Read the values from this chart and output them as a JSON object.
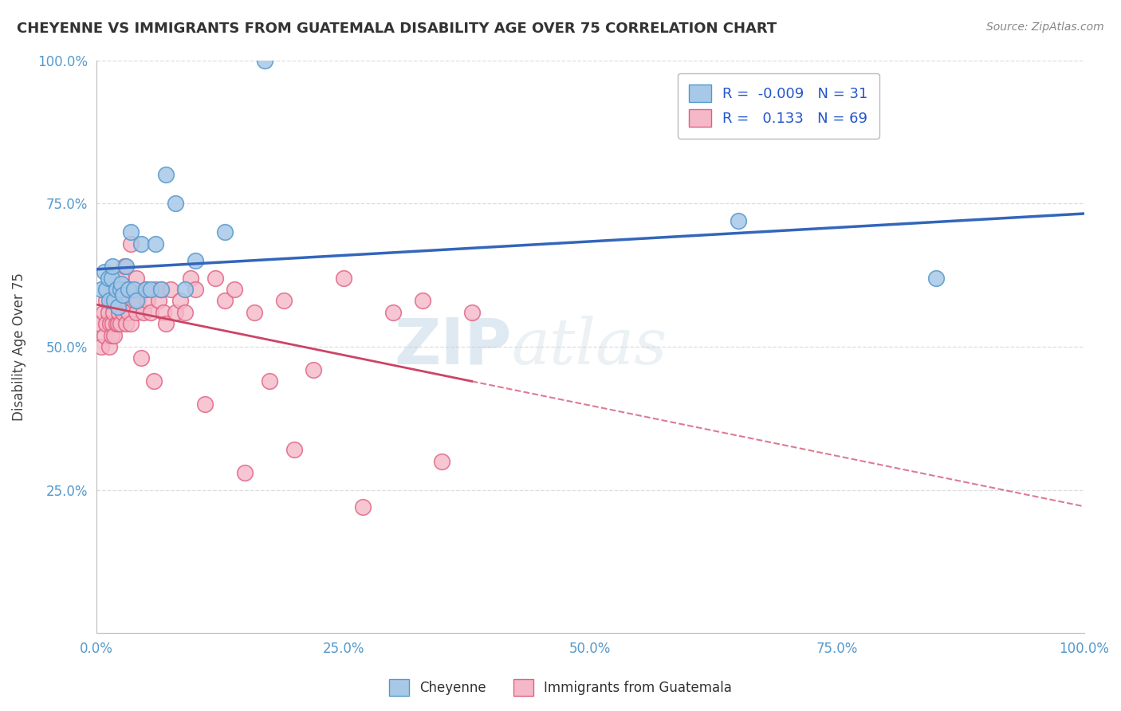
{
  "title": "CHEYENNE VS IMMIGRANTS FROM GUATEMALA DISABILITY AGE OVER 75 CORRELATION CHART",
  "source": "Source: ZipAtlas.com",
  "ylabel": "Disability Age Over 75",
  "xlabel": "",
  "xlim": [
    0,
    1.0
  ],
  "ylim": [
    0,
    1.0
  ],
  "xticks": [
    0.0,
    0.25,
    0.5,
    0.75,
    1.0
  ],
  "yticks": [
    0.25,
    0.5,
    0.75,
    1.0
  ],
  "xticklabels": [
    "0.0%",
    "25.0%",
    "50.0%",
    "75.0%",
    "100.0%"
  ],
  "yticklabels": [
    "25.0%",
    "50.0%",
    "75.0%",
    "100.0%"
  ],
  "blue_R": -0.009,
  "blue_N": 31,
  "pink_R": 0.133,
  "pink_N": 69,
  "blue_color": "#a8c8e8",
  "pink_color": "#f4b8c8",
  "blue_edge": "#5599cc",
  "pink_edge": "#e06080",
  "trend_blue": "#3366bb",
  "trend_pink": "#cc4466",
  "watermark_zip": "ZIP",
  "watermark_atlas": "atlas",
  "background_color": "#ffffff",
  "grid_color": "#dddddd",
  "title_color": "#333333",
  "axis_label_color": "#5599cc",
  "blue_scatter_x": [
    0.005,
    0.008,
    0.01,
    0.012,
    0.013,
    0.015,
    0.016,
    0.018,
    0.02,
    0.022,
    0.024,
    0.025,
    0.027,
    0.03,
    0.032,
    0.035,
    0.038,
    0.04,
    0.045,
    0.05,
    0.055,
    0.06,
    0.065,
    0.07,
    0.08,
    0.09,
    0.1,
    0.13,
    0.17,
    0.65,
    0.85
  ],
  "blue_scatter_y": [
    0.6,
    0.63,
    0.6,
    0.62,
    0.58,
    0.62,
    0.64,
    0.58,
    0.6,
    0.57,
    0.6,
    0.61,
    0.59,
    0.64,
    0.6,
    0.7,
    0.6,
    0.58,
    0.68,
    0.6,
    0.6,
    0.68,
    0.6,
    0.8,
    0.75,
    0.6,
    0.65,
    0.7,
    1.0,
    0.72,
    0.62
  ],
  "pink_scatter_x": [
    0.003,
    0.005,
    0.007,
    0.008,
    0.01,
    0.01,
    0.012,
    0.013,
    0.014,
    0.015,
    0.015,
    0.016,
    0.017,
    0.018,
    0.018,
    0.02,
    0.02,
    0.022,
    0.022,
    0.023,
    0.024,
    0.025,
    0.025,
    0.027,
    0.028,
    0.028,
    0.03,
    0.03,
    0.032,
    0.033,
    0.035,
    0.035,
    0.038,
    0.04,
    0.04,
    0.042,
    0.045,
    0.048,
    0.05,
    0.052,
    0.055,
    0.058,
    0.06,
    0.063,
    0.065,
    0.068,
    0.07,
    0.075,
    0.08,
    0.085,
    0.09,
    0.095,
    0.1,
    0.11,
    0.12,
    0.13,
    0.14,
    0.15,
    0.16,
    0.175,
    0.19,
    0.2,
    0.22,
    0.25,
    0.27,
    0.3,
    0.33,
    0.35,
    0.38
  ],
  "pink_scatter_y": [
    0.54,
    0.5,
    0.56,
    0.52,
    0.58,
    0.54,
    0.56,
    0.5,
    0.54,
    0.52,
    0.58,
    0.54,
    0.56,
    0.52,
    0.6,
    0.54,
    0.58,
    0.54,
    0.6,
    0.56,
    0.54,
    0.58,
    0.62,
    0.56,
    0.6,
    0.64,
    0.54,
    0.58,
    0.56,
    0.6,
    0.68,
    0.54,
    0.58,
    0.56,
    0.62,
    0.58,
    0.48,
    0.56,
    0.6,
    0.58,
    0.56,
    0.44,
    0.6,
    0.58,
    0.6,
    0.56,
    0.54,
    0.6,
    0.56,
    0.58,
    0.56,
    0.62,
    0.6,
    0.4,
    0.62,
    0.58,
    0.6,
    0.28,
    0.56,
    0.44,
    0.58,
    0.32,
    0.46,
    0.62,
    0.22,
    0.56,
    0.58,
    0.3,
    0.56
  ]
}
